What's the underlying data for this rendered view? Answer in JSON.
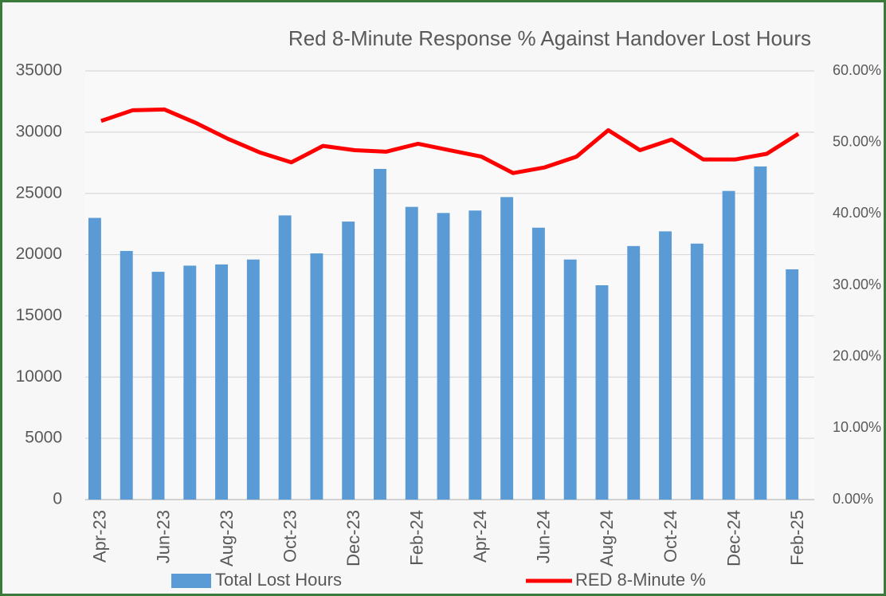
{
  "chart_data": {
    "type": "bar",
    "title": "Red 8-Minute Response % Against Handover Lost Hours",
    "categories": [
      "Apr-23",
      null,
      "Jun-23",
      null,
      "Aug-23",
      null,
      "Oct-23",
      null,
      "Dec-23",
      null,
      "Feb-24",
      null,
      "Apr-24",
      null,
      "Jun-24",
      null,
      "Aug-24",
      null,
      "Oct-24",
      null,
      "Dec-24",
      null,
      "Feb-25"
    ],
    "series": [
      {
        "name": "Total Lost Hours",
        "type": "bar",
        "color": "#5b9bd5",
        "values": [
          23000,
          20300,
          18600,
          19100,
          19200,
          19600,
          23200,
          20100,
          22700,
          27000,
          23900,
          23400,
          23600,
          24700,
          22200,
          19600,
          17500,
          20700,
          21900,
          20900,
          25200,
          27200,
          18800
        ]
      },
      {
        "name": "RED 8-Minute %",
        "type": "line",
        "axis": "y2",
        "color": "#ff0000",
        "values": [
          53.0,
          54.5,
          54.6,
          52.7,
          50.5,
          48.6,
          47.2,
          49.5,
          48.9,
          48.7,
          49.8,
          48.9,
          48.0,
          45.7,
          46.5,
          48.0,
          51.7,
          48.9,
          50.4,
          47.6,
          47.6,
          48.4,
          51.2
        ]
      }
    ],
    "ylim": [
      0,
      35000
    ],
    "yticks": [
      0,
      5000,
      10000,
      15000,
      20000,
      25000,
      30000,
      35000
    ],
    "y2lim": [
      0,
      60
    ],
    "y2ticks": [
      {
        "value": 0,
        "label": "0.00%"
      },
      {
        "value": 10,
        "label": "10.00%"
      },
      {
        "value": 20,
        "label": "20.00%"
      },
      {
        "value": 30,
        "label": "30.00%"
      },
      {
        "value": 40,
        "label": "40.00%"
      },
      {
        "value": 50,
        "label": "50.00%"
      },
      {
        "value": 60,
        "label": "60.00%"
      }
    ],
    "grid": true,
    "legend": "bottom"
  }
}
